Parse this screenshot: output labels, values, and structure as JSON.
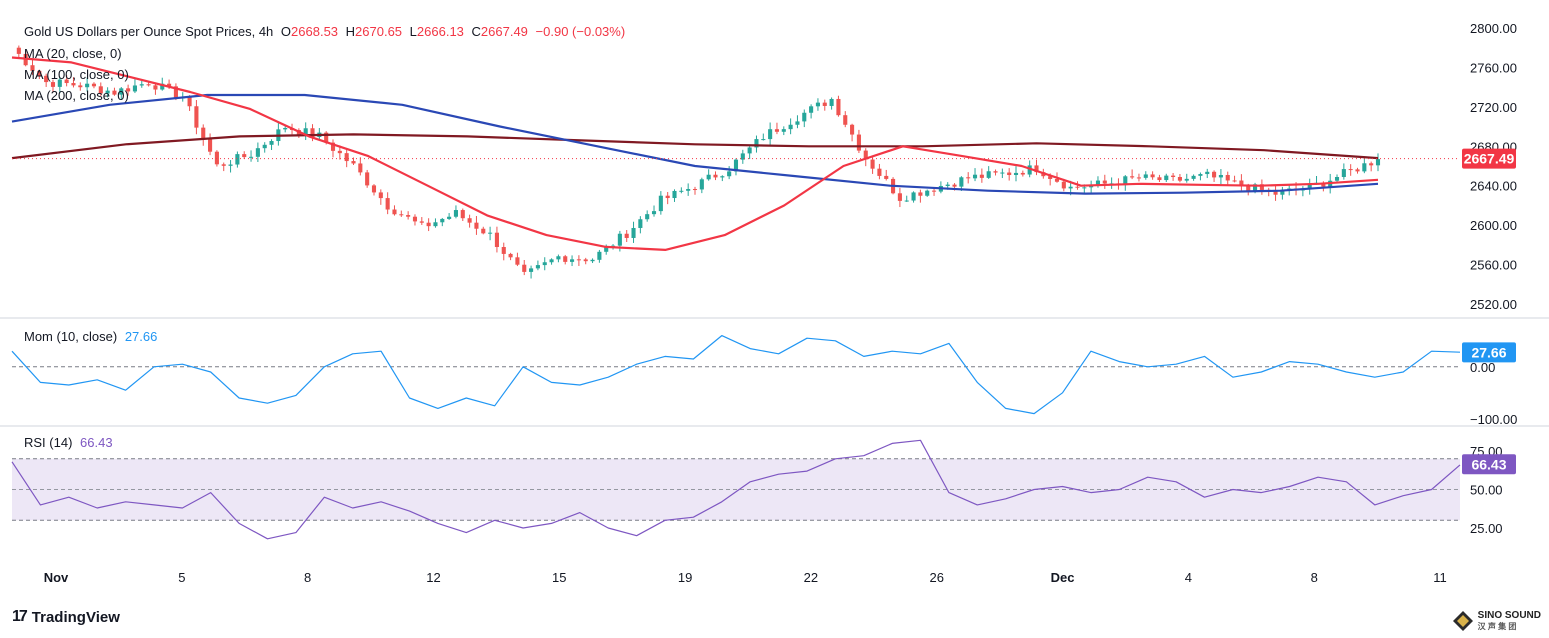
{
  "header": {
    "symbol": "Gold US Dollars per Ounce Spot Prices, 4h",
    "open_label": "O",
    "open": "2668.53",
    "high_label": "H",
    "high": "2670.65",
    "low_label": "L",
    "low": "2666.13",
    "close_label": "C",
    "close": "2667.49",
    "change": "−0.90 (−0.03%)"
  },
  "indicators": {
    "ma20": "MA (20, close, 0)",
    "ma100": "MA (100, close, 0)",
    "ma200": "MA (200, close, 0)",
    "mom_label": "Mom (10, close)",
    "mom_value": "27.66",
    "rsi_label": "RSI (14)",
    "rsi_value": "66.43"
  },
  "branding": {
    "tradingview": "TradingView",
    "watermark": "SINO SOUND",
    "watermark_sub": "汉 声 集 团"
  },
  "colors": {
    "up": "#26a69a",
    "down": "#ef5350",
    "ma20": "#f23645",
    "ma100": "#2a48b5",
    "ma200": "#801922",
    "mom": "#2196f3",
    "rsi": "#7e57c2",
    "rsi_band": "#ede7f6",
    "price_badge": "#f23645",
    "mom_badge": "#2196f3",
    "rsi_badge": "#7e57c2"
  },
  "chart_data": [
    {
      "type": "candlestick",
      "title": "Gold US Dollars per Ounce Spot Prices, 4h",
      "x_ticks": [
        "Nov",
        "5",
        "8",
        "12",
        "15",
        "19",
        "22",
        "26",
        "Dec",
        "4",
        "8",
        "11"
      ],
      "y_ticks": [
        "2800.00",
        "2760.00",
        "2720.00",
        "2680.00",
        "2640.00",
        "2600.00",
        "2560.00",
        "2520.00"
      ],
      "ylim": [
        2508,
        2810
      ],
      "last_price": "2667.49",
      "key_closes": [
        2780,
        2745,
        2742,
        2735,
        2745,
        2730,
        2660,
        2672,
        2700,
        2690,
        2660,
        2620,
        2598,
        2612,
        2590,
        2548,
        2568,
        2566,
        2592,
        2625,
        2640,
        2658,
        2690,
        2710,
        2728,
        2668,
        2628,
        2638,
        2648,
        2652,
        2658,
        2638,
        2642,
        2648,
        2645,
        2650,
        2640,
        2632,
        2638,
        2652,
        2667
      ],
      "ma20": [
        2770,
        2765,
        2750,
        2735,
        2718,
        2690,
        2670,
        2640,
        2610,
        2590,
        2578,
        2575,
        2590,
        2620,
        2660,
        2680,
        2670,
        2660,
        2640,
        2642,
        2641,
        2640,
        2642,
        2646
      ],
      "ma100": [
        2705,
        2722,
        2732,
        2732,
        2722,
        2700,
        2680,
        2660,
        2650,
        2640,
        2635,
        2632,
        2633,
        2635,
        2642
      ],
      "ma200": [
        2668,
        2682,
        2690,
        2692,
        2690,
        2686,
        2682,
        2680,
        2680,
        2683,
        2680,
        2676,
        2668
      ]
    },
    {
      "type": "line",
      "title": "Mom (10, close)",
      "y_ticks": [
        "0.00",
        "−100.00"
      ],
      "ylim": [
        -110,
        90
      ],
      "last_value": "27.66",
      "values": [
        30,
        -30,
        -35,
        -25,
        -45,
        0,
        5,
        -10,
        -60,
        -70,
        -55,
        0,
        25,
        30,
        -60,
        -80,
        -60,
        -75,
        0,
        -30,
        -35,
        -20,
        5,
        20,
        15,
        60,
        35,
        25,
        55,
        50,
        20,
        30,
        25,
        45,
        -30,
        -80,
        -90,
        -50,
        30,
        10,
        0,
        5,
        20,
        -20,
        -10,
        10,
        5,
        -10,
        -20,
        -10,
        30,
        28
      ]
    },
    {
      "type": "line",
      "title": "RSI (14)",
      "y_ticks": [
        "75.00",
        "50.00",
        "25.00"
      ],
      "ylim": [
        12,
        90
      ],
      "bands": [
        30,
        70
      ],
      "last_value": "66.43",
      "values": [
        68,
        40,
        45,
        38,
        42,
        40,
        38,
        48,
        28,
        18,
        22,
        45,
        38,
        42,
        36,
        28,
        22,
        30,
        25,
        28,
        35,
        25,
        20,
        30,
        32,
        42,
        55,
        60,
        62,
        70,
        72,
        80,
        82,
        48,
        40,
        44,
        50,
        52,
        48,
        50,
        58,
        55,
        45,
        50,
        48,
        52,
        58,
        55,
        40,
        46,
        50,
        66
      ]
    }
  ]
}
